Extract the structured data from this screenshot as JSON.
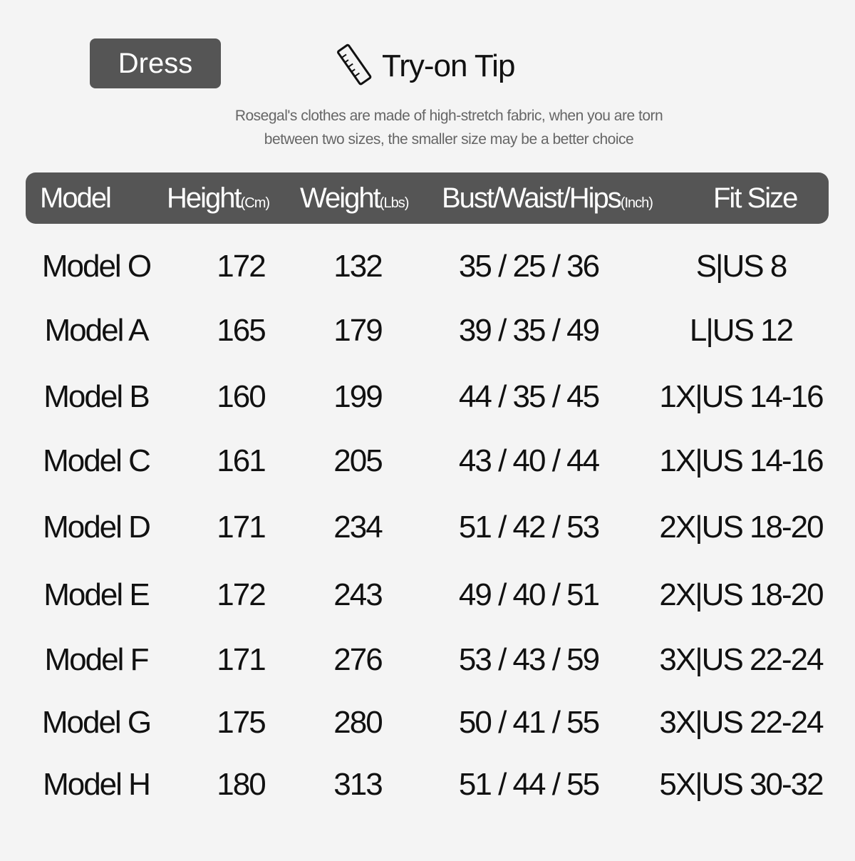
{
  "badge": {
    "label": "Dress"
  },
  "tip": {
    "title": "Try-on Tip",
    "icon": "ruler-icon",
    "note_line1": "Rosegal's clothes are made of high-stretch fabric, when you are torn",
    "note_line2": "between two sizes, the smaller size may be a better choice"
  },
  "header": {
    "model": "Model",
    "height": "Height",
    "height_unit": "(Cm)",
    "weight": "Weight",
    "weight_unit": "(Lbs)",
    "bwh": "Bust/Waist/Hips",
    "bwh_unit": "(Inch)",
    "fit": "Fit Size"
  },
  "colors": {
    "header_bg": "#555555",
    "background": "#f4f4f4"
  },
  "rows": [
    {
      "model": "Model O",
      "height": "172",
      "weight": "132",
      "bwh": "35 / 25 / 36",
      "fit": "S|US 8"
    },
    {
      "model": "Model A",
      "height": "165",
      "weight": "179",
      "bwh": "39 / 35 / 49",
      "fit": "L|US 12"
    },
    {
      "model": "Model B",
      "height": "160",
      "weight": "199",
      "bwh": "44 / 35 / 45",
      "fit": "1X|US 14-16"
    },
    {
      "model": "Model C",
      "height": "161",
      "weight": "205",
      "bwh": "43 / 40 / 44",
      "fit": "1X|US 14-16"
    },
    {
      "model": "Model D",
      "height": "171",
      "weight": "234",
      "bwh": "51 / 42 / 53",
      "fit": "2X|US 18-20"
    },
    {
      "model": "Model E",
      "height": "172",
      "weight": "243",
      "bwh": "49 / 40 / 51",
      "fit": "2X|US 18-20"
    },
    {
      "model": "Model F",
      "height": "171",
      "weight": "276",
      "bwh": "53 / 43 / 59",
      "fit": "3X|US 22-24"
    },
    {
      "model": "Model G",
      "height": "175",
      "weight": "280",
      "bwh": "50 / 41 / 55",
      "fit": "3X|US 22-24"
    },
    {
      "model": "Model H",
      "height": "180",
      "weight": "313",
      "bwh": "51 / 44 / 55",
      "fit": "5X|US 30-32"
    }
  ]
}
